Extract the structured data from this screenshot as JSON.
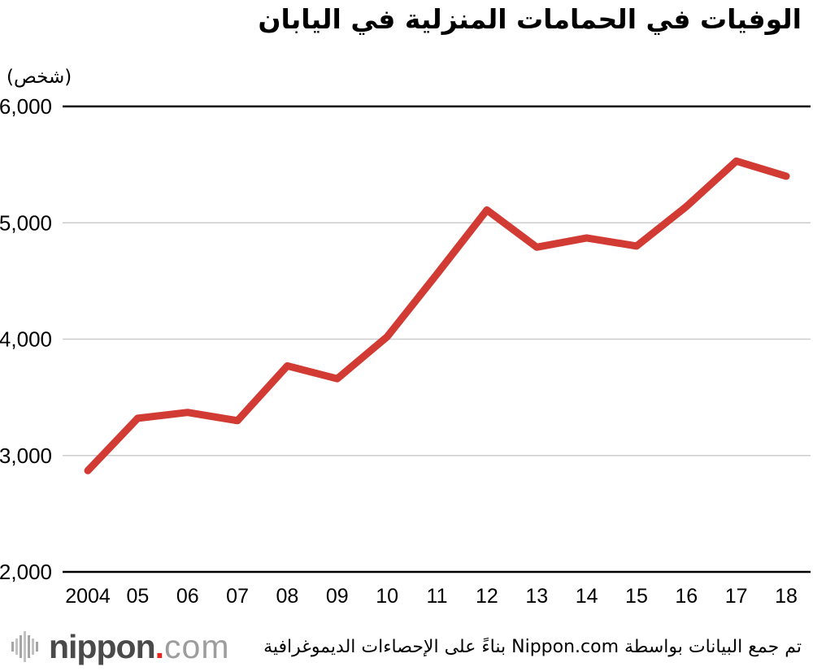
{
  "chart_data": {
    "type": "line",
    "title": "الوفيات في الحمامات المنزلية في اليابان",
    "ylabel": "(شخص)",
    "xlabel": "",
    "categories": [
      "2004",
      "05",
      "06",
      "07",
      "08",
      "09",
      "10",
      "11",
      "12",
      "13",
      "14",
      "15",
      "16",
      "17",
      "18"
    ],
    "series": [
      {
        "name": "deaths-in-home-baths",
        "values": [
          2870,
          3320,
          3370,
          3300,
          3770,
          3660,
          4020,
          4560,
          5110,
          4790,
          4870,
          4800,
          5140,
          5530,
          5400
        ]
      }
    ],
    "ylim": [
      2000,
      6000
    ],
    "ytick_step": 1000,
    "ytick_labels": [
      "2,000",
      "3,000",
      "4,000",
      "5,000",
      "6,000"
    ],
    "grid": "horizontal-on",
    "legend": "none",
    "line_color": "#d23b33"
  },
  "colors": {
    "line": "#d23b33",
    "grid_light": "#cccccc",
    "axis_dark": "#000000",
    "logo_red": "#e8261f",
    "logo_dark": "#4a4a4a",
    "logo_light": "#9d9d9d",
    "logo_bars": "#a6a6a6"
  },
  "footer": {
    "source_text": "تم جمع البيانات بواسطة Nippon.com بناءً على الإحصاءات الديموغرافية",
    "logo": {
      "icon": "waveform-icon",
      "name": "nippon",
      "dot": ".",
      "tld": "com"
    }
  }
}
